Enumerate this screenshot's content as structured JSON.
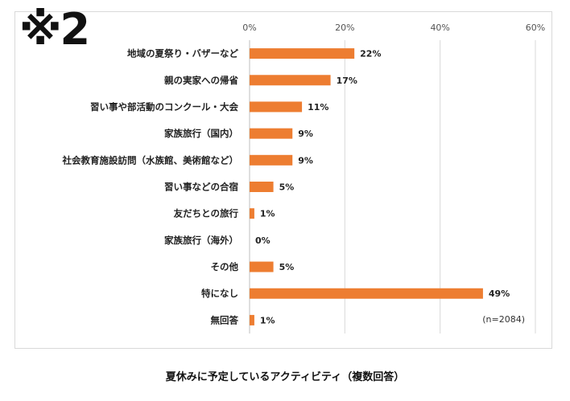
{
  "marker": "※2",
  "caption": "夏休みに予定しているアクティビティ（複数回答）",
  "chart_data": {
    "type": "bar",
    "orientation": "horizontal",
    "title": "",
    "xlabel": "",
    "ylabel": "",
    "xlim": [
      0,
      60
    ],
    "x_ticks": [
      "0%",
      "20%",
      "40%",
      "60%"
    ],
    "tick_values": [
      0,
      20,
      40,
      60
    ],
    "grid": true,
    "bar_color": "#ED7D31",
    "note": "(n=2084)",
    "categories": [
      "地域の夏祭り・バザーなど",
      "親の実家への帰省",
      "習い事や部活動のコンクール・大会",
      "家族旅行（国内）",
      "社会教育施設訪問（水族館、美術館など）",
      "習い事などの合宿",
      "友だちとの旅行",
      "家族旅行（海外）",
      "その他",
      "特になし",
      "無回答"
    ],
    "values": [
      22,
      17,
      11,
      9,
      9,
      5,
      1,
      0,
      5,
      49,
      1
    ],
    "value_labels": [
      "22%",
      "17%",
      "11%",
      "9%",
      "9%",
      "5%",
      "1%",
      "0%",
      "5%",
      "49%",
      "1%"
    ]
  }
}
